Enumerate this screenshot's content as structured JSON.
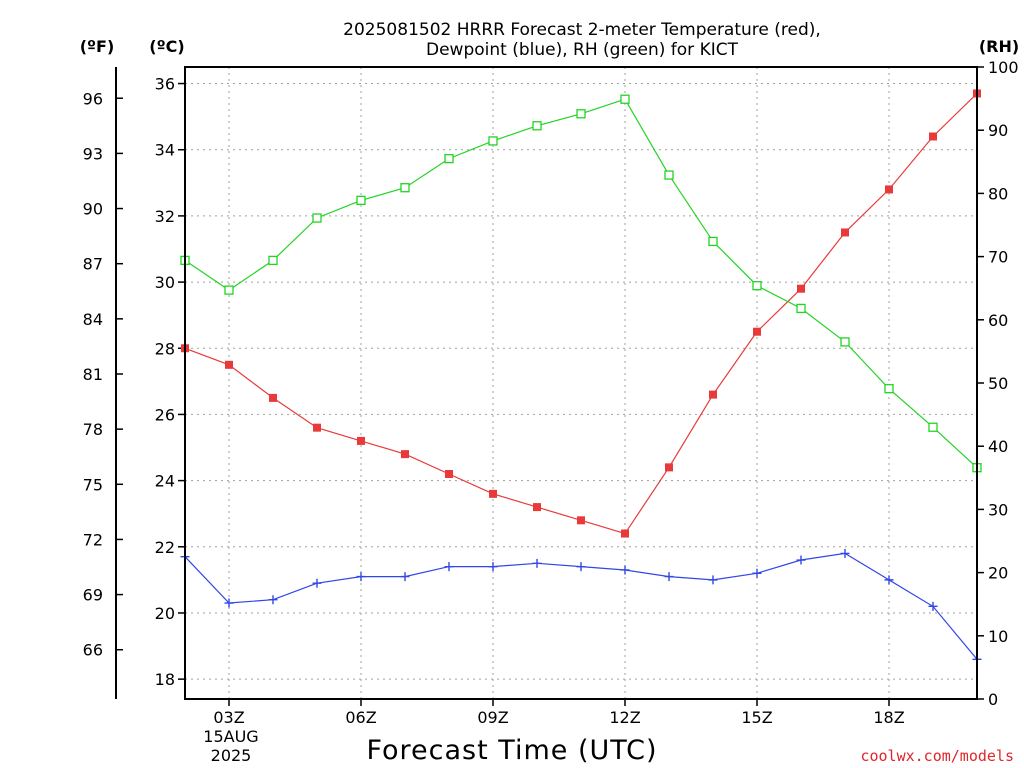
{
  "chart_data": {
    "type": "line",
    "title_lines": [
      "2025081502 HRRR Forecast 2-meter Temperature (red),",
      "Dewpoint (blue), RH (green) for KICT"
    ],
    "unit_labels": {
      "left_outer": "(ºF)",
      "left_inner": "(ºC)",
      "right": "(RH)"
    },
    "xlabel": "Forecast Time (UTC)",
    "date_lines": [
      "15AUG",
      "2025"
    ],
    "credit": "coolwx.com/models",
    "grid": true,
    "x_hours": [
      2,
      3,
      4,
      5,
      6,
      7,
      8,
      9,
      10,
      11,
      12,
      13,
      14,
      15,
      16,
      17,
      18,
      19,
      20
    ],
    "xlim": [
      2,
      20
    ],
    "x_ticks": [
      {
        "x": 3,
        "label": "03Z"
      },
      {
        "x": 6,
        "label": "06Z"
      },
      {
        "x": 9,
        "label": "09Z"
      },
      {
        "x": 12,
        "label": "12Z"
      },
      {
        "x": 15,
        "label": "15Z"
      },
      {
        "x": 18,
        "label": "18Z"
      }
    ],
    "celsius_axis": {
      "ylim": [
        17.4,
        36.5
      ],
      "ticks": [
        18,
        20,
        22,
        24,
        26,
        28,
        30,
        32,
        34,
        36
      ]
    },
    "fahrenheit_ticks": [
      66,
      69,
      72,
      75,
      78,
      81,
      84,
      87,
      90,
      93,
      96
    ],
    "rh_axis": {
      "ylim": [
        0,
        100
      ],
      "ticks": [
        0,
        10,
        20,
        30,
        40,
        50,
        60,
        70,
        80,
        90,
        100
      ]
    },
    "series": [
      {
        "name": "2-meter Temperature",
        "axis": "celsius",
        "color": "#e83a3a",
        "marker": "filled-square",
        "values": [
          28.0,
          27.5,
          26.5,
          25.6,
          25.2,
          24.8,
          24.2,
          23.6,
          23.2,
          22.8,
          22.4,
          24.4,
          26.6,
          28.5,
          29.8,
          31.5,
          32.8,
          34.4,
          35.7
        ]
      },
      {
        "name": "Dewpoint",
        "axis": "celsius",
        "color": "#3046e8",
        "marker": "plus",
        "values": [
          21.7,
          20.3,
          20.4,
          20.9,
          21.1,
          21.1,
          21.4,
          21.4,
          21.5,
          21.4,
          21.3,
          21.1,
          21.0,
          21.2,
          21.6,
          21.8,
          21.0,
          20.2,
          18.6
        ]
      },
      {
        "name": "RH",
        "axis": "rh",
        "color": "#22d422",
        "marker": "open-square",
        "values": [
          69.4,
          64.7,
          69.4,
          76.1,
          78.9,
          80.9,
          85.5,
          88.3,
          90.7,
          92.6,
          94.9,
          82.9,
          72.4,
          65.4,
          61.8,
          56.5,
          49.1,
          43.0,
          36.6
        ]
      }
    ]
  }
}
